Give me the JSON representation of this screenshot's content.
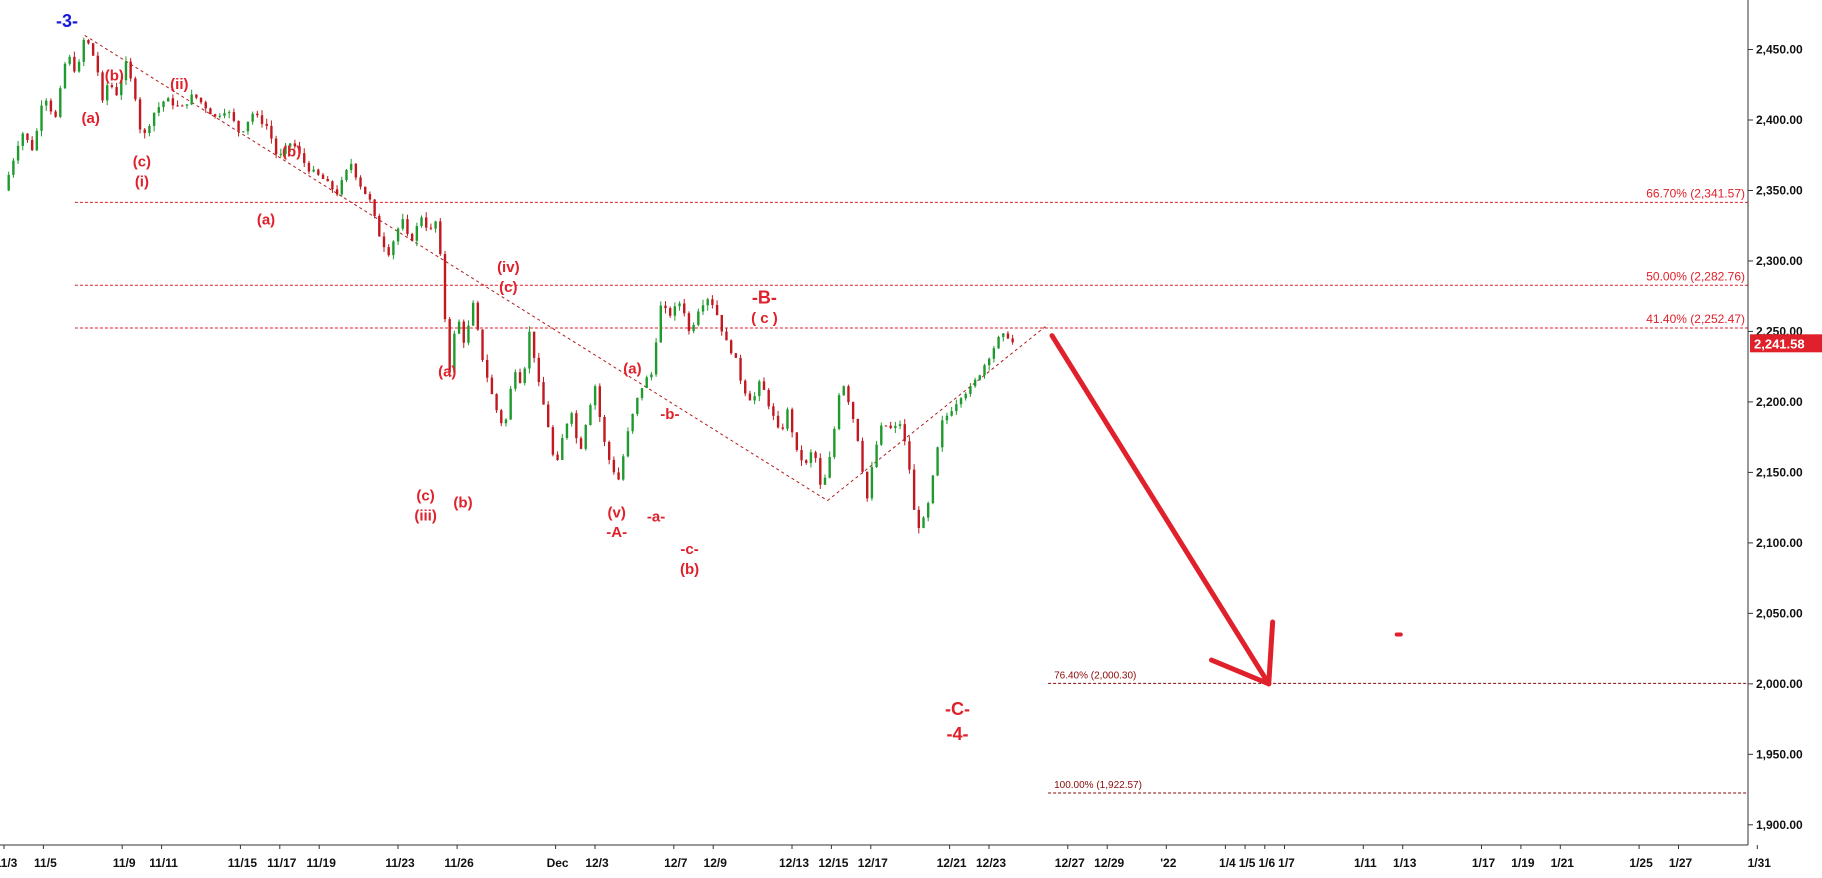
{
  "chart_data": {
    "type": "candlestick",
    "y_axis": {
      "position": "right",
      "range": [
        1880,
        2475
      ],
      "ticks": [
        {
          "value": 2450,
          "label": "2,450.00"
        },
        {
          "value": 2400,
          "label": "2,400.00"
        },
        {
          "value": 2350,
          "label": "2,350.00"
        },
        {
          "value": 2300,
          "label": "2,300.00"
        },
        {
          "value": 2250,
          "label": "2,250.00"
        },
        {
          "value": 2200,
          "label": "2,200.00"
        },
        {
          "value": 2150,
          "label": "2,150.00"
        },
        {
          "value": 2100,
          "label": "2,100.00"
        },
        {
          "value": 2050,
          "label": "2,050.00"
        },
        {
          "value": 2000,
          "label": "2,000.00"
        },
        {
          "value": 1950,
          "label": "1,950.00"
        },
        {
          "value": 1900,
          "label": "1,900.00"
        }
      ]
    },
    "x_axis": {
      "range_days": [
        0,
        89
      ],
      "ticks": [
        {
          "day": 0,
          "label": "11/3"
        },
        {
          "day": 2,
          "label": "11/5"
        },
        {
          "day": 6,
          "label": "11/9"
        },
        {
          "day": 8,
          "label": "11/11"
        },
        {
          "day": 12,
          "label": "11/15"
        },
        {
          "day": 14,
          "label": "11/17"
        },
        {
          "day": 16,
          "label": "11/19"
        },
        {
          "day": 20,
          "label": "11/23"
        },
        {
          "day": 23,
          "label": "11/26"
        },
        {
          "day": 28,
          "label": "Dec"
        },
        {
          "day": 30,
          "label": "12/3"
        },
        {
          "day": 34,
          "label": "12/7"
        },
        {
          "day": 36,
          "label": "12/9"
        },
        {
          "day": 40,
          "label": "12/13"
        },
        {
          "day": 42,
          "label": "12/15"
        },
        {
          "day": 44,
          "label": "12/17"
        },
        {
          "day": 48,
          "label": "12/21"
        },
        {
          "day": 50,
          "label": "12/23"
        },
        {
          "day": 54,
          "label": "12/27"
        },
        {
          "day": 56,
          "label": "12/29"
        },
        {
          "day": 59,
          "label": "'22"
        },
        {
          "day": 62,
          "label": "1/4"
        },
        {
          "day": 63,
          "label": "1/5"
        },
        {
          "day": 64,
          "label": "1/6"
        },
        {
          "day": 65,
          "label": "1/7"
        },
        {
          "day": 69,
          "label": "1/11"
        },
        {
          "day": 71,
          "label": "1/13"
        },
        {
          "day": 75,
          "label": "1/17"
        },
        {
          "day": 77,
          "label": "1/19"
        },
        {
          "day": 79,
          "label": "1/21"
        },
        {
          "day": 83,
          "label": "1/25"
        },
        {
          "day": 85,
          "label": "1/27"
        },
        {
          "day": 89,
          "label": "1/31"
        }
      ]
    },
    "candle_path": [
      [
        0.0,
        2350
      ],
      [
        0.9,
        2392
      ],
      [
        1.5,
        2378
      ],
      [
        2.0,
        2420
      ],
      [
        2.6,
        2400
      ],
      [
        3.2,
        2448
      ],
      [
        3.7,
        2432
      ],
      [
        4.1,
        2460
      ],
      [
        4.7,
        2440
      ],
      [
        5.0,
        2412
      ],
      [
        5.3,
        2428
      ],
      [
        5.7,
        2418
      ],
      [
        6.2,
        2440
      ],
      [
        6.7,
        2415
      ],
      [
        7.0,
        2385
      ],
      [
        7.6,
        2405
      ],
      [
        8.2,
        2415
      ],
      [
        9.0,
        2408
      ],
      [
        9.6,
        2418
      ],
      [
        10.2,
        2410
      ],
      [
        10.7,
        2402
      ],
      [
        11.3,
        2408
      ],
      [
        12.0,
        2390
      ],
      [
        12.6,
        2405
      ],
      [
        13.4,
        2395
      ],
      [
        13.9,
        2372
      ],
      [
        14.6,
        2385
      ],
      [
        15.4,
        2366
      ],
      [
        16.2,
        2358
      ],
      [
        16.9,
        2348
      ],
      [
        17.6,
        2370
      ],
      [
        18.0,
        2356
      ],
      [
        18.6,
        2342
      ],
      [
        19.0,
        2320
      ],
      [
        19.5,
        2305
      ],
      [
        20.2,
        2330
      ],
      [
        20.6,
        2312
      ],
      [
        21.2,
        2332
      ],
      [
        21.6,
        2320
      ],
      [
        22.0,
        2330
      ],
      [
        22.3,
        2275
      ],
      [
        22.6,
        2220
      ],
      [
        23.0,
        2262
      ],
      [
        23.4,
        2240
      ],
      [
        23.8,
        2270
      ],
      [
        24.3,
        2230
      ],
      [
        24.9,
        2198
      ],
      [
        25.4,
        2180
      ],
      [
        25.9,
        2225
      ],
      [
        26.3,
        2212
      ],
      [
        26.7,
        2252
      ],
      [
        27.1,
        2215
      ],
      [
        27.6,
        2185
      ],
      [
        28.0,
        2150
      ],
      [
        28.4,
        2178
      ],
      [
        28.8,
        2195
      ],
      [
        29.2,
        2162
      ],
      [
        29.6,
        2190
      ],
      [
        30.0,
        2212
      ],
      [
        30.4,
        2175
      ],
      [
        30.8,
        2155
      ],
      [
        31.2,
        2145
      ],
      [
        31.7,
        2180
      ],
      [
        32.1,
        2200
      ],
      [
        32.5,
        2215
      ],
      [
        32.9,
        2220
      ],
      [
        33.3,
        2268
      ],
      [
        33.8,
        2262
      ],
      [
        34.4,
        2272
      ],
      [
        34.8,
        2248
      ],
      [
        35.3,
        2268
      ],
      [
        35.8,
        2275
      ],
      [
        36.2,
        2262
      ],
      [
        36.6,
        2244
      ],
      [
        37.1,
        2232
      ],
      [
        37.5,
        2210
      ],
      [
        38.0,
        2200
      ],
      [
        38.4,
        2215
      ],
      [
        38.9,
        2195
      ],
      [
        39.4,
        2176
      ],
      [
        39.8,
        2195
      ],
      [
        40.2,
        2165
      ],
      [
        40.7,
        2155
      ],
      [
        41.1,
        2168
      ],
      [
        41.5,
        2135
      ],
      [
        42.0,
        2165
      ],
      [
        42.5,
        2218
      ],
      [
        43.0,
        2195
      ],
      [
        43.4,
        2170
      ],
      [
        43.8,
        2130
      ],
      [
        44.2,
        2165
      ],
      [
        44.6,
        2185
      ],
      [
        45.1,
        2180
      ],
      [
        45.5,
        2185
      ],
      [
        45.9,
        2160
      ],
      [
        46.3,
        2110
      ],
      [
        46.8,
        2118
      ],
      [
        47.2,
        2150
      ],
      [
        47.6,
        2185
      ],
      [
        48.1,
        2195
      ],
      [
        48.6,
        2205
      ],
      [
        49.1,
        2210
      ],
      [
        49.6,
        2222
      ],
      [
        50.1,
        2235
      ],
      [
        50.5,
        2245
      ],
      [
        50.9,
        2248
      ],
      [
        51.2,
        2242
      ]
    ],
    "fib_levels": [
      {
        "value": 2341.57,
        "label": "66.70% (2,341.57)",
        "start_day": 3.6
      },
      {
        "value": 2282.76,
        "label": "50.00% (2,282.76)",
        "start_day": 3.6
      },
      {
        "value": 2252.47,
        "label": "41.40% (2,252.47)",
        "start_day": 3.6
      },
      {
        "value": 2000.3,
        "label": "76.40% (2,000.30)",
        "start_day": 53.0
      },
      {
        "value": 1922.57,
        "label": "100.00% (1,922.57)",
        "start_day": 53.0
      }
    ],
    "trend_lines": [
      {
        "from": [
          4.1,
          2460
        ],
        "to": [
          41.8,
          2130
        ]
      },
      {
        "from": [
          41.8,
          2130
        ],
        "to": [
          53.0,
          2255
        ]
      }
    ],
    "projection_arrow": {
      "from": [
        53.2,
        2247
      ],
      "to": [
        64.2,
        2000
      ]
    },
    "projection_arrow_color": "#e0202a",
    "last_price": {
      "value": 2241.58,
      "label": "2,241.58",
      "color": "#e0202a"
    },
    "marker_dot": {
      "day": 70.8,
      "value": 2035
    },
    "wave_labels": [
      {
        "text": "-3-",
        "day": 3.2,
        "value": 2466,
        "style": "blue"
      },
      {
        "text": "(b)",
        "day": 5.6,
        "value": 2428,
        "style": "normal"
      },
      {
        "text": "(a)",
        "day": 4.4,
        "value": 2398,
        "style": "normal"
      },
      {
        "text": "(ii)",
        "day": 8.9,
        "value": 2422,
        "style": "normal"
      },
      {
        "text": "(c)",
        "day": 7.0,
        "value": 2367,
        "style": "normal"
      },
      {
        "text": "(i)",
        "day": 7.0,
        "value": 2353,
        "style": "normal"
      },
      {
        "text": "(b)",
        "day": 14.6,
        "value": 2374,
        "style": "normal"
      },
      {
        "text": "(a)",
        "day": 13.3,
        "value": 2326,
        "style": "normal"
      },
      {
        "text": "(iv)",
        "day": 25.6,
        "value": 2292,
        "style": "normal"
      },
      {
        "text": "(c)",
        "day": 25.6,
        "value": 2278,
        "style": "normal"
      },
      {
        "text": "(a)",
        "day": 22.5,
        "value": 2218,
        "style": "normal"
      },
      {
        "text": "(c)",
        "day": 21.4,
        "value": 2130,
        "style": "normal"
      },
      {
        "text": "(iii)",
        "day": 21.4,
        "value": 2116,
        "style": "normal"
      },
      {
        "text": "(b)",
        "day": 23.3,
        "value": 2125,
        "style": "normal"
      },
      {
        "text": "(a)",
        "day": 31.9,
        "value": 2220,
        "style": "normal"
      },
      {
        "text": "(v)",
        "day": 31.1,
        "value": 2118,
        "style": "normal"
      },
      {
        "text": "-A-",
        "day": 31.1,
        "value": 2104,
        "style": "normal"
      },
      {
        "text": "-a-",
        "day": 33.1,
        "value": 2115,
        "style": "normal"
      },
      {
        "text": "-b-",
        "day": 33.8,
        "value": 2188,
        "style": "normal"
      },
      {
        "text": "-c-",
        "day": 34.8,
        "value": 2092,
        "style": "normal"
      },
      {
        "text": "(b)",
        "day": 34.8,
        "value": 2078,
        "style": "normal"
      },
      {
        "text": "-B-",
        "day": 38.6,
        "value": 2270,
        "style": "big"
      },
      {
        "text": "( c )",
        "day": 38.6,
        "value": 2256,
        "style": "normal"
      },
      {
        "text": "-C-",
        "day": 48.4,
        "value": 1978,
        "style": "big"
      },
      {
        "text": "-4-",
        "day": 48.4,
        "value": 1960,
        "style": "big"
      }
    ],
    "colors": {
      "up_candle": "#1f9a2e",
      "down_candle": "#c0191f",
      "fib_line": "#e0202a",
      "fib_line_lower": "#8b0a0a",
      "trend_line": "#b31d1d",
      "axis_line": "#333333",
      "grid_tick": "#333333"
    }
  }
}
